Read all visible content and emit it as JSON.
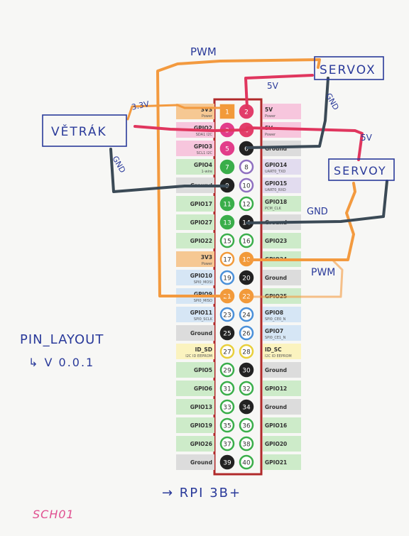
{
  "header_labels": {
    "3v3_1": "3V3",
    "3v3_1_sub": "Power"
  },
  "left_labels": [
    {
      "name": "3V3",
      "sub": "Power",
      "color": "#f6c893"
    },
    {
      "name": "GPIO2",
      "sub": "SDA1 I2C",
      "color": "#f7c6dd"
    },
    {
      "name": "GPIO3",
      "sub": "SCL1 I2C",
      "color": "#f7c6dd"
    },
    {
      "name": "GPIO4",
      "sub": "1-wire",
      "color": "#cdebc9"
    },
    {
      "name": "Ground",
      "sub": "",
      "color": "#dcdcdc"
    },
    {
      "name": "GPIO17",
      "sub": "",
      "color": "#cdebc9"
    },
    {
      "name": "GPIO27",
      "sub": "",
      "color": "#cdebc9"
    },
    {
      "name": "GPIO22",
      "sub": "",
      "color": "#cdebc9"
    },
    {
      "name": "3V3",
      "sub": "Power",
      "color": "#f6c893"
    },
    {
      "name": "GPIO10",
      "sub": "SPI0_MOSI",
      "color": "#d6e6f5"
    },
    {
      "name": "GPIO9",
      "sub": "SPI0_MISO",
      "color": "#d6e6f5"
    },
    {
      "name": "GPIO11",
      "sub": "SPI0_SCLK",
      "color": "#d6e6f5"
    },
    {
      "name": "Ground",
      "sub": "",
      "color": "#dcdcdc"
    },
    {
      "name": "ID_SD",
      "sub": "I2C ID EEPROM",
      "color": "#fbf3bf"
    },
    {
      "name": "GPIO5",
      "sub": "",
      "color": "#cdebc9"
    },
    {
      "name": "GPIO6",
      "sub": "",
      "color": "#cdebc9"
    },
    {
      "name": "GPIO13",
      "sub": "",
      "color": "#cdebc9"
    },
    {
      "name": "GPIO19",
      "sub": "",
      "color": "#cdebc9"
    },
    {
      "name": "GPIO26",
      "sub": "",
      "color": "#cdebc9"
    },
    {
      "name": "Ground",
      "sub": "",
      "color": "#dcdcdc"
    }
  ],
  "right_labels": [
    {
      "name": "5V",
      "sub": "Power",
      "color": "#f7c6dd"
    },
    {
      "name": "5V",
      "sub": "Power",
      "color": "#f7c6dd"
    },
    {
      "name": "Ground",
      "sub": "",
      "color": "#dcdcdc"
    },
    {
      "name": "GPIO14",
      "sub": "UART0_TXD",
      "color": "#e2dcef"
    },
    {
      "name": "GPIO15",
      "sub": "UART0_RXD",
      "color": "#e2dcef"
    },
    {
      "name": "GPIO18",
      "sub": "PCM_CLK",
      "color": "#cdebc9"
    },
    {
      "name": "Ground",
      "sub": "",
      "color": "#dcdcdc"
    },
    {
      "name": "GPIO23",
      "sub": "",
      "color": "#cdebc9"
    },
    {
      "name": "GPIO24",
      "sub": "",
      "color": "#cdebc9"
    },
    {
      "name": "Ground",
      "sub": "",
      "color": "#dcdcdc"
    },
    {
      "name": "GPIO25",
      "sub": "",
      "color": "#cdebc9"
    },
    {
      "name": "GPIO8",
      "sub": "SPI0_CE0_N",
      "color": "#d6e6f5"
    },
    {
      "name": "GPIO7",
      "sub": "SPI0_CE1_N",
      "color": "#d6e6f5"
    },
    {
      "name": "ID_SC",
      "sub": "I2C ID EEPROM",
      "color": "#fbf3bf"
    },
    {
      "name": "Ground",
      "sub": "",
      "color": "#dcdcdc"
    },
    {
      "name": "GPIO12",
      "sub": "",
      "color": "#cdebc9"
    },
    {
      "name": "Ground",
      "sub": "",
      "color": "#dcdcdc"
    },
    {
      "name": "GPIO16",
      "sub": "",
      "color": "#cdebc9"
    },
    {
      "name": "GPIO20",
      "sub": "",
      "color": "#cdebc9"
    },
    {
      "name": "GPIO21",
      "sub": "",
      "color": "#cdebc9"
    }
  ],
  "pins": [
    {
      "n": "1",
      "fill": "#f29a3a",
      "ring": "#f29a3a",
      "text": "#ffffff"
    },
    {
      "n": "2",
      "fill": "#e23d6a",
      "ring": "#e23d6a",
      "text": "#ffffff"
    },
    {
      "n": "3",
      "fill": "#e23d8a",
      "ring": "#e23d8a",
      "text": "#ffffff"
    },
    {
      "n": "4",
      "fill": "#e23d6a",
      "ring": "#e23d6a",
      "text": "#ffffff"
    },
    {
      "n": "5",
      "fill": "#e23d8a",
      "ring": "#e23d8a",
      "text": "#ffffff"
    },
    {
      "n": "6",
      "fill": "#222222",
      "ring": "#222222",
      "text": "#ffffff"
    },
    {
      "n": "7",
      "fill": "#3aae4a",
      "ring": "#3aae4a",
      "text": "#ffffff"
    },
    {
      "n": "8",
      "fill": "#ffffff",
      "ring": "#8f70c0",
      "text": "#333333"
    },
    {
      "n": "9",
      "fill": "#222222",
      "ring": "#222222",
      "text": "#ffffff"
    },
    {
      "n": "10",
      "fill": "#ffffff",
      "ring": "#8f70c0",
      "text": "#333333"
    },
    {
      "n": "11",
      "fill": "#3aae4a",
      "ring": "#3aae4a",
      "text": "#ffffff"
    },
    {
      "n": "12",
      "fill": "#ffffff",
      "ring": "#3aae4a",
      "text": "#333333"
    },
    {
      "n": "13",
      "fill": "#3aae4a",
      "ring": "#3aae4a",
      "text": "#ffffff"
    },
    {
      "n": "14",
      "fill": "#222222",
      "ring": "#222222",
      "text": "#ffffff"
    },
    {
      "n": "15",
      "fill": "#ffffff",
      "ring": "#3aae4a",
      "text": "#333333"
    },
    {
      "n": "16",
      "fill": "#ffffff",
      "ring": "#3aae4a",
      "text": "#333333"
    },
    {
      "n": "17",
      "fill": "#ffffff",
      "ring": "#f29a3a",
      "text": "#333333"
    },
    {
      "n": "18",
      "fill": "#f29a3a",
      "ring": "#f29a3a",
      "text": "#ffffff"
    },
    {
      "n": "19",
      "fill": "#ffffff",
      "ring": "#4a90d9",
      "text": "#333333"
    },
    {
      "n": "20",
      "fill": "#222222",
      "ring": "#222222",
      "text": "#ffffff"
    },
    {
      "n": "21",
      "fill": "#f29a3a",
      "ring": "#f29a3a",
      "text": "#ffffff"
    },
    {
      "n": "22",
      "fill": "#f29a3a",
      "ring": "#f29a3a",
      "text": "#ffffff"
    },
    {
      "n": "23",
      "fill": "#ffffff",
      "ring": "#4a90d9",
      "text": "#333333"
    },
    {
      "n": "24",
      "fill": "#ffffff",
      "ring": "#4a90d9",
      "text": "#333333"
    },
    {
      "n": "25",
      "fill": "#222222",
      "ring": "#222222",
      "text": "#ffffff"
    },
    {
      "n": "26",
      "fill": "#ffffff",
      "ring": "#4a90d9",
      "text": "#333333"
    },
    {
      "n": "27",
      "fill": "#ffffff",
      "ring": "#e8cf3a",
      "text": "#333333"
    },
    {
      "n": "28",
      "fill": "#ffffff",
      "ring": "#e8cf3a",
      "text": "#333333"
    },
    {
      "n": "29",
      "fill": "#ffffff",
      "ring": "#3aae4a",
      "text": "#333333"
    },
    {
      "n": "30",
      "fill": "#222222",
      "ring": "#222222",
      "text": "#ffffff"
    },
    {
      "n": "31",
      "fill": "#ffffff",
      "ring": "#3aae4a",
      "text": "#333333"
    },
    {
      "n": "32",
      "fill": "#ffffff",
      "ring": "#3aae4a",
      "text": "#333333"
    },
    {
      "n": "33",
      "fill": "#ffffff",
      "ring": "#3aae4a",
      "text": "#333333"
    },
    {
      "n": "34",
      "fill": "#222222",
      "ring": "#222222",
      "text": "#ffffff"
    },
    {
      "n": "35",
      "fill": "#ffffff",
      "ring": "#3aae4a",
      "text": "#333333"
    },
    {
      "n": "36",
      "fill": "#ffffff",
      "ring": "#3aae4a",
      "text": "#333333"
    },
    {
      "n": "37",
      "fill": "#ffffff",
      "ring": "#3aae4a",
      "text": "#333333"
    },
    {
      "n": "38",
      "fill": "#ffffff",
      "ring": "#3aae4a",
      "text": "#333333"
    },
    {
      "n": "39",
      "fill": "#222222",
      "ring": "#222222",
      "text": "#ffffff"
    },
    {
      "n": "40",
      "fill": "#ffffff",
      "ring": "#3aae4a",
      "text": "#333333"
    }
  ],
  "handwriting": {
    "pwm_top": "PWM",
    "servox": "SERVOX",
    "v5_servox": "5V",
    "gnd_servox": "GND",
    "v33": "3.3V",
    "vetrak": "VĚTRÁK",
    "gnd_vetrak": "GND",
    "v5_servoy": "5V",
    "servoy": "SERVOY",
    "gnd_servoy": "GND",
    "pwm_bottom": "PWM",
    "pin_layout": "PIN_LAYOUT",
    "version": "↳ V 0.0.1",
    "board": "→ RPI 3B+",
    "sheet": "SCH01"
  },
  "colors": {
    "wire_pwm": "#f39a3f",
    "wire_5v": "#e0365e",
    "wire_gnd": "#3b4a56",
    "ink_blue": "#2a3a9a",
    "ink_pink": "#e05090",
    "header_border": "#b02a2a"
  }
}
